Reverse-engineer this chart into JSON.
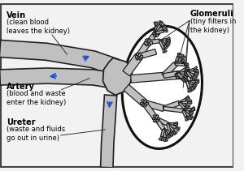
{
  "bg_color": "#f2f2f2",
  "border_color": "#444444",
  "tube_fill": "#c0c0c0",
  "tube_edge": "#222222",
  "arrow_color": "#2255cc",
  "text_color": "#000000",
  "kidney_fill": "#ffffff",
  "labels": {
    "vein_title": "Vein",
    "vein_desc": "(clean blood\nleaves the kidney)",
    "artery_title": "Artery",
    "artery_desc": "(blood and waste\nenter the kidney)",
    "ureter_title": "Ureter",
    "ureter_desc": "(waste and fluids\ngo out in urine)",
    "glomeruli_title": "Glomeruli",
    "glomeruli_desc": "(tiny filters in\nthe kidney)"
  },
  "figsize": [
    3.0,
    2.11
  ],
  "dpi": 100
}
